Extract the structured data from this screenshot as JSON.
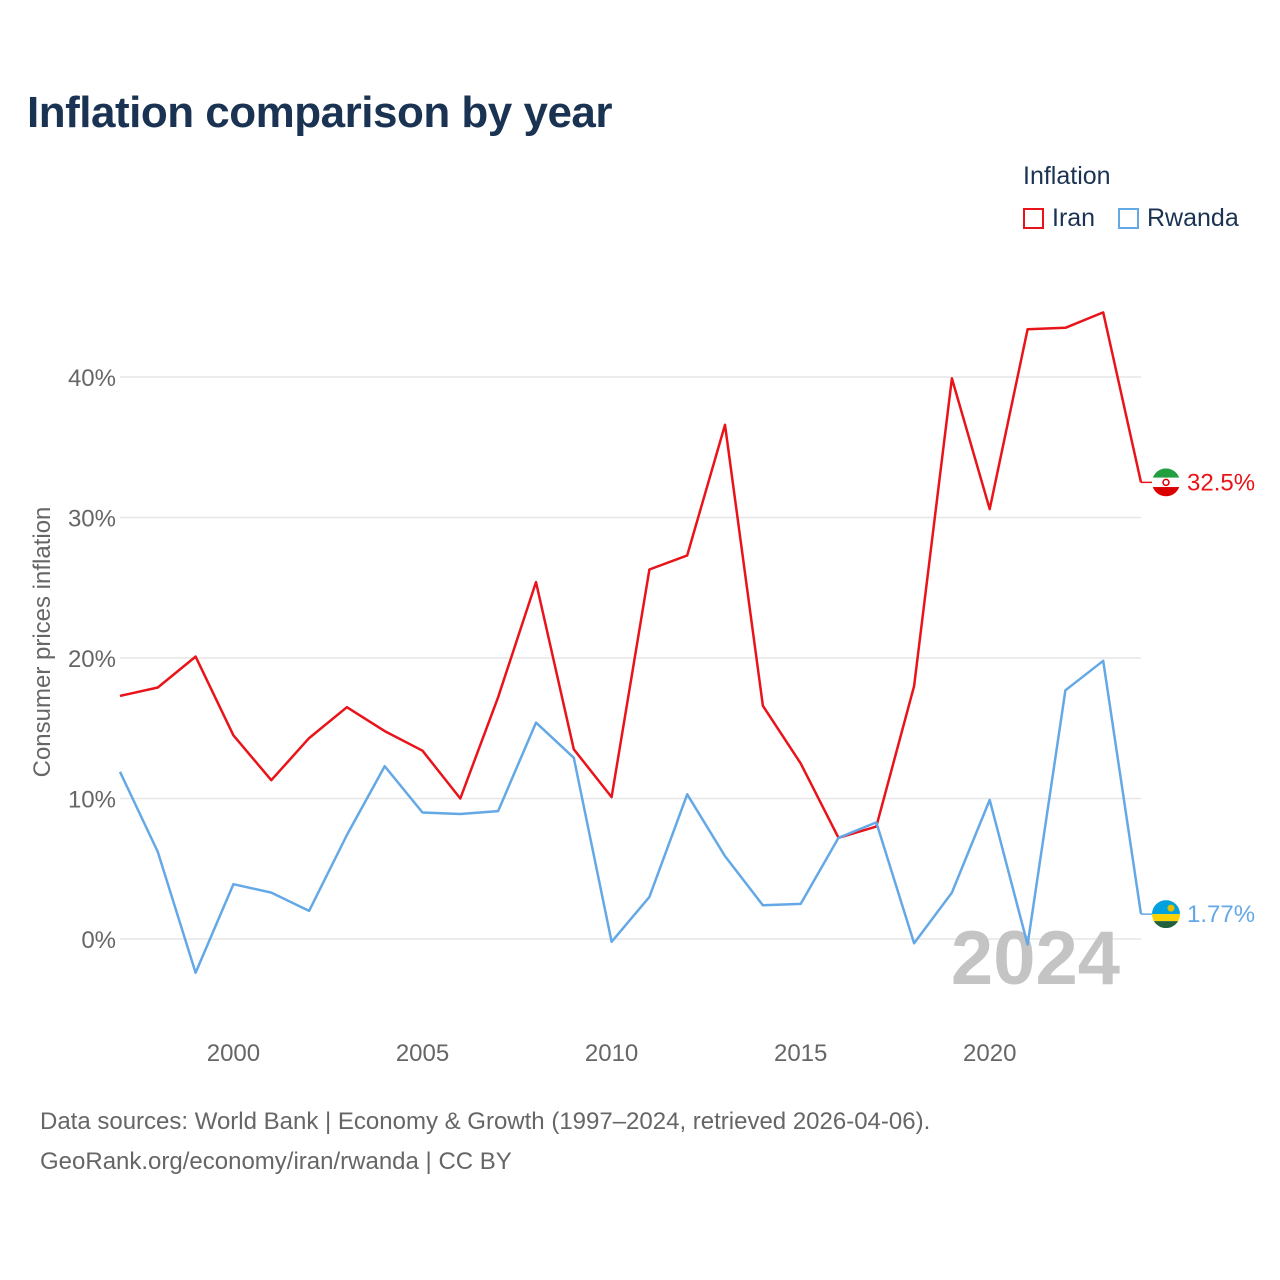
{
  "title": "Inflation comparison by year",
  "legend": {
    "title": "Inflation",
    "items": [
      {
        "label": "Iran",
        "color": "#e8141a"
      },
      {
        "label": "Rwanda",
        "color": "#64a8e6"
      }
    ]
  },
  "source": {
    "line1": "Data sources: World Bank | Economy & Growth (1997–2024, retrieved 2026-04-06).",
    "line2": "GeoRank.org/economy/iran/rwanda | CC BY"
  },
  "chart_data": {
    "type": "line",
    "title": "Inflation comparison by year",
    "xlabel": "",
    "ylabel": "Consumer prices inflation",
    "xlim": [
      1997,
      2024
    ],
    "ylim": [
      -5,
      48
    ],
    "yticks": [
      0,
      10,
      20,
      30,
      40
    ],
    "ytick_labels": [
      "0%",
      "10%",
      "20%",
      "30%",
      "40%"
    ],
    "xticks": [
      2000,
      2005,
      2010,
      2015,
      2020
    ],
    "xtick_labels": [
      "2000",
      "2005",
      "2010",
      "2015",
      "2020"
    ],
    "grid": true,
    "watermark_year": "2024",
    "x": [
      1997,
      1998,
      1999,
      2000,
      2001,
      2002,
      2003,
      2004,
      2005,
      2006,
      2007,
      2008,
      2009,
      2010,
      2011,
      2012,
      2013,
      2014,
      2015,
      2016,
      2017,
      2018,
      2019,
      2020,
      2021,
      2022,
      2023,
      2024
    ],
    "series": [
      {
        "name": "Iran",
        "color": "#e8141a",
        "end_label": "32.5%",
        "values": [
          17.3,
          17.9,
          20.1,
          14.5,
          11.3,
          14.3,
          16.5,
          14.8,
          13.4,
          10.0,
          17.2,
          25.4,
          13.5,
          10.1,
          26.3,
          27.3,
          36.6,
          16.6,
          12.5,
          7.2,
          8.0,
          18.0,
          39.9,
          30.6,
          43.4,
          43.5,
          44.6,
          32.5
        ]
      },
      {
        "name": "Rwanda",
        "color": "#64a8e6",
        "end_label": "1.77%",
        "values": [
          11.9,
          6.2,
          -2.4,
          3.9,
          3.3,
          2.0,
          7.4,
          12.3,
          9.0,
          8.9,
          9.1,
          15.4,
          12.9,
          -0.2,
          3.0,
          10.3,
          5.9,
          2.4,
          2.5,
          7.2,
          8.3,
          -0.3,
          3.3,
          9.9,
          -0.4,
          17.7,
          19.8,
          1.77
        ]
      }
    ]
  }
}
